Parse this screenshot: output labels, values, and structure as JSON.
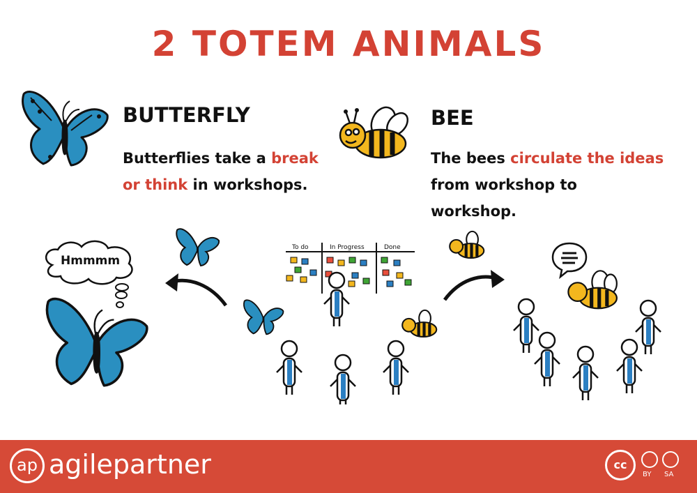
{
  "title": "2 TOTEM ANIMALS",
  "butterfly": {
    "heading": "BUTTERFLY",
    "desc": [
      {
        "text": "Butterflies take a ",
        "highlight": false
      },
      {
        "text": "break",
        "highlight": true
      },
      {
        "text": "or think",
        "highlight": true
      },
      {
        "text": " in workshops.",
        "highlight": false
      }
    ]
  },
  "bee": {
    "heading": "BEE",
    "desc": [
      {
        "text": "The bees ",
        "highlight": false
      },
      {
        "text": "circulate the ideas",
        "highlight": true
      },
      {
        "text": "from workshop to workshop.",
        "highlight": false
      }
    ]
  },
  "thought_bubble": "Hmmmm",
  "board": {
    "columns": [
      "To do",
      "In Progress",
      "Done"
    ]
  },
  "footer": {
    "logo_mark": "ap",
    "brand": "agilepartner",
    "license": [
      "BY",
      "SA"
    ],
    "cc": "cc"
  },
  "colors": {
    "accent": "#d34234",
    "footer": "#d64a37",
    "butterfly_blue": "#2a8fc0",
    "bee_yellow": "#f3b71e",
    "person_blue": "#2b7fc2"
  }
}
